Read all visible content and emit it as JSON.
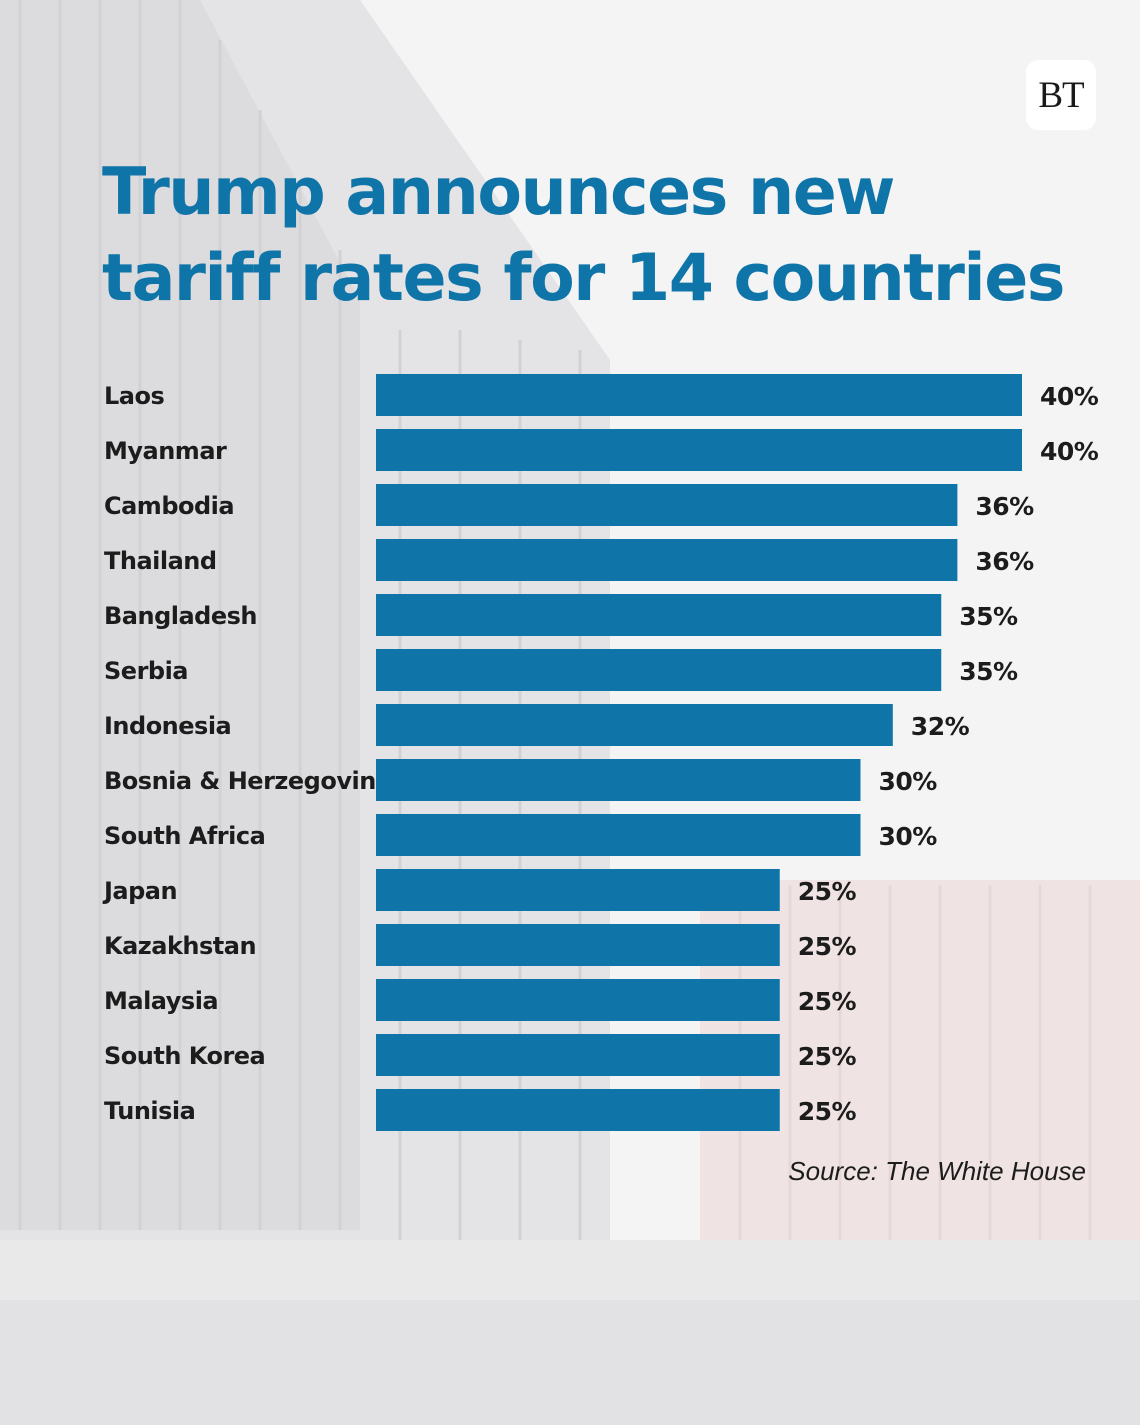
{
  "brand": {
    "logo_text": "BT"
  },
  "title_lines": [
    "Trump announces new",
    "tariff rates for 14 countries"
  ],
  "source": "Source: The White House",
  "colors": {
    "bar": "#0f74a8",
    "title": "#0f74a8",
    "text": "#1c1c1c"
  },
  "chart_data": {
    "type": "bar",
    "orientation": "horizontal",
    "title": "Trump announces new tariff rates for 14 countries",
    "categories": [
      "Laos",
      "Myanmar",
      "Cambodia",
      "Thailand",
      "Bangladesh",
      "Serbia",
      "Indonesia",
      "Bosnia & Herzegovina",
      "South Africa",
      "Japan",
      "Kazakhstan",
      "Malaysia",
      "South Korea",
      "Tunisia"
    ],
    "values": [
      40,
      40,
      36,
      36,
      35,
      35,
      32,
      30,
      30,
      25,
      25,
      25,
      25,
      25
    ],
    "value_labels": [
      "40%",
      "40%",
      "36%",
      "36%",
      "35%",
      "35%",
      "32%",
      "30%",
      "30%",
      "25%",
      "25%",
      "25%",
      "25%",
      "25%"
    ],
    "unit": "%",
    "xlim": [
      0,
      40
    ],
    "grid": false,
    "legend": "none"
  }
}
